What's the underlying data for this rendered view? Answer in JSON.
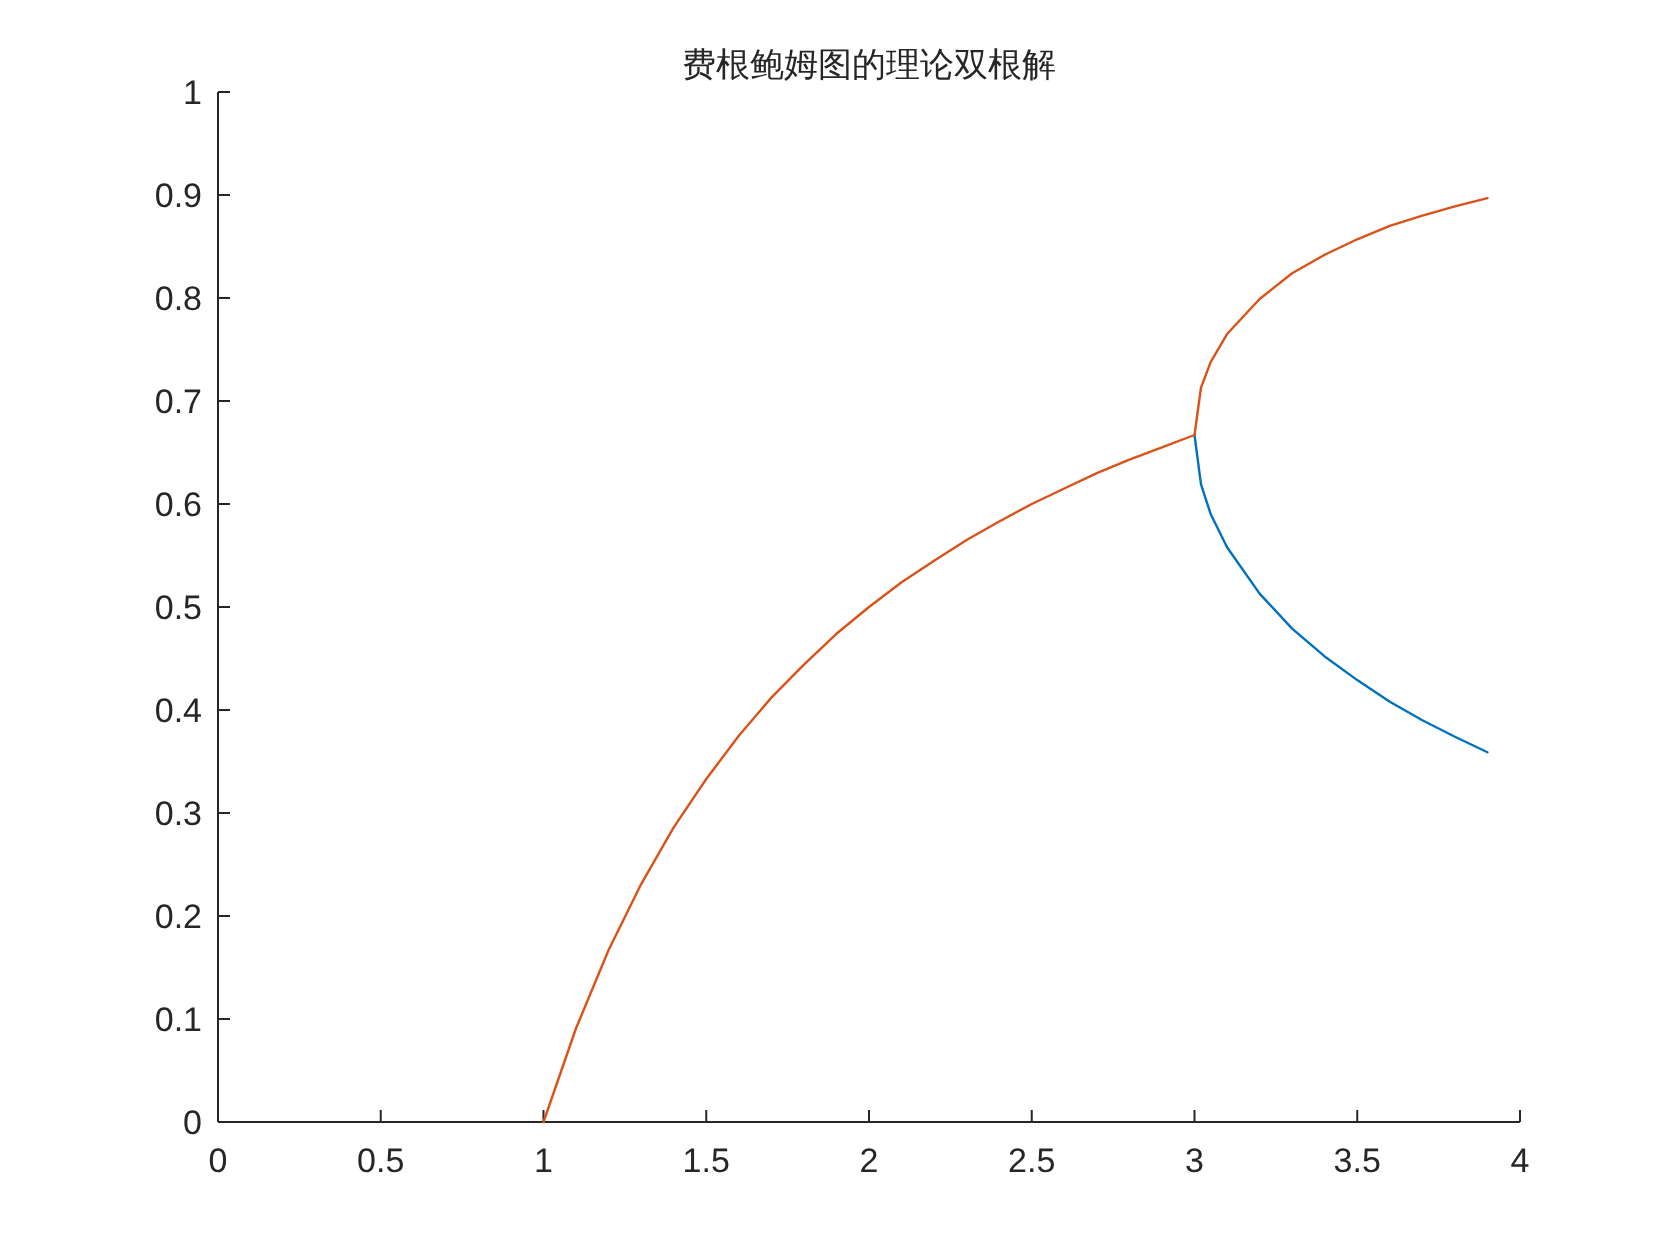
{
  "chart_data": {
    "type": "line",
    "title": "费根鲍姆图的理论双根解",
    "xlim": [
      0,
      4
    ],
    "ylim": [
      0,
      1
    ],
    "xticks": [
      0,
      0.5,
      1,
      1.5,
      2,
      2.5,
      3,
      3.5,
      4
    ],
    "yticks": [
      0,
      0.1,
      0.2,
      0.3,
      0.4,
      0.5,
      0.6,
      0.7,
      0.8,
      0.9,
      1
    ],
    "series": [
      {
        "color": "#0072bd",
        "x": [
          3,
          3.02,
          3.05,
          3.1,
          3.2,
          3.3,
          3.4,
          3.5,
          3.6,
          3.7,
          3.8,
          3.9
        ],
        "values": [
          0.667,
          0.619,
          0.59,
          0.558,
          0.513,
          0.479,
          0.452,
          0.429,
          0.408,
          0.39,
          0.374,
          0.359
        ]
      },
      {
        "color": "#d95319",
        "x": [
          1,
          1.1,
          1.2,
          1.3,
          1.4,
          1.5,
          1.6,
          1.7,
          1.8,
          1.9,
          2,
          2.1,
          2.2,
          2.3,
          2.4,
          2.5,
          2.6,
          2.7,
          2.8,
          2.9,
          3,
          3.02,
          3.05,
          3.1,
          3.2,
          3.3,
          3.4,
          3.5,
          3.6,
          3.7,
          3.8,
          3.9
        ],
        "values": [
          0,
          0.091,
          0.167,
          0.231,
          0.286,
          0.333,
          0.375,
          0.412,
          0.444,
          0.474,
          0.5,
          0.524,
          0.545,
          0.565,
          0.583,
          0.6,
          0.615,
          0.63,
          0.643,
          0.655,
          0.667,
          0.713,
          0.738,
          0.765,
          0.799,
          0.824,
          0.842,
          0.857,
          0.87,
          0.88,
          0.889,
          0.897
        ]
      }
    ]
  }
}
